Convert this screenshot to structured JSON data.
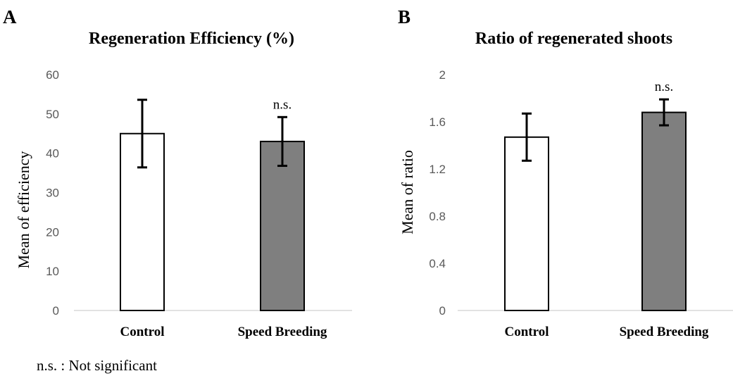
{
  "footnote": "n.s. : Not significant",
  "chart_data": [
    {
      "panel": "A",
      "type": "bar",
      "title": "Regeneration Efficiency (%)",
      "xlabel": "",
      "ylabel": "Mean of efficiency",
      "ylim": [
        0,
        60
      ],
      "yticks": [
        0,
        10,
        20,
        30,
        40,
        50,
        60
      ],
      "ytick_labels": [
        "0",
        "10",
        "20",
        "30",
        "40",
        "50",
        "60"
      ],
      "categories": [
        "Control",
        "Speed Breeding"
      ],
      "values": [
        45,
        43
      ],
      "errors": [
        8.6,
        6.2
      ],
      "bar_colors": [
        "#ffffff",
        "#7f7f7f"
      ],
      "significance": [
        "",
        "n.s."
      ],
      "grid": false
    },
    {
      "panel": "B",
      "type": "bar",
      "title": "Ratio of regenerated shoots",
      "xlabel": "",
      "ylabel": "Mean of ratio",
      "ylim": [
        0,
        2
      ],
      "yticks": [
        0,
        0.4,
        0.8,
        1.2,
        1.6,
        2
      ],
      "ytick_labels": [
        "0",
        "0.4",
        "0.8",
        "1.2",
        "1.6",
        "2"
      ],
      "categories": [
        "Control",
        "Speed Breeding"
      ],
      "values": [
        1.47,
        1.68
      ],
      "errors": [
        0.2,
        0.11
      ],
      "bar_colors": [
        "#ffffff",
        "#7f7f7f"
      ],
      "significance": [
        "",
        "n.s."
      ],
      "grid": false
    }
  ]
}
